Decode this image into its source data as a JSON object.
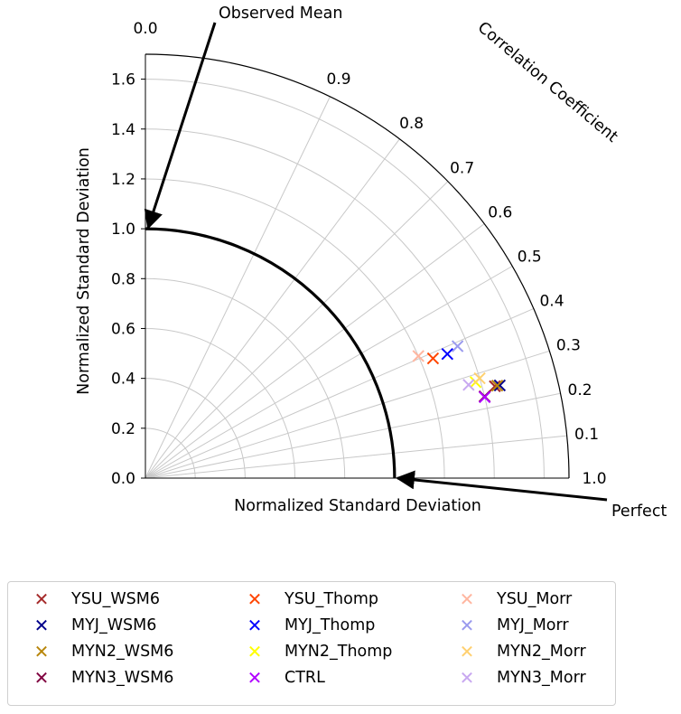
{
  "chart_data": {
    "type": "taylor",
    "title": "",
    "correlation_label": "Correlation Coefficient",
    "std_label_left": "Normalized Standard Deviation",
    "std_label_bottom": "Normalized Standard Deviation",
    "std_max": 1.7,
    "std_ticks": [
      "0.0",
      "0.2",
      "0.4",
      "0.6",
      "0.8",
      "1.0",
      "1.2",
      "1.4",
      "1.6"
    ],
    "std_tick_values": [
      0.0,
      0.2,
      0.4,
      0.6,
      0.8,
      1.0,
      1.2,
      1.4,
      1.6
    ],
    "corr_ticks": [
      "0.0",
      "0.1",
      "0.2",
      "0.3",
      "0.4",
      "0.5",
      "0.6",
      "0.7",
      "0.8",
      "0.9",
      "1.0"
    ],
    "corr_tick_values": [
      0.0,
      0.1,
      0.2,
      0.3,
      0.4,
      0.5,
      0.6,
      0.7,
      0.8,
      0.9,
      1.0
    ],
    "reference_std": 1.0,
    "annotations": {
      "observed_mean": "Observed Mean",
      "perfect": "Perfect"
    },
    "series": [
      {
        "name": "YSU_WSM6",
        "color": "#a52a2a",
        "corr": 0.254,
        "std": 1.45
      },
      {
        "name": "MYJ_WSM6",
        "color": "#00008b",
        "corr": 0.253,
        "std": 1.47
      },
      {
        "name": "MYN2_WSM6",
        "color": "#b8860b",
        "corr": 0.254,
        "std": 1.46
      },
      {
        "name": "MYN3_WSM6",
        "color": "#800040",
        "corr": 0.234,
        "std": 1.4
      },
      {
        "name": "YSU_Thomp",
        "color": "#ff4500",
        "corr": 0.384,
        "std": 1.25
      },
      {
        "name": "MYJ_Thomp",
        "color": "#0000ff",
        "corr": 0.38,
        "std": 1.31
      },
      {
        "name": "MYN2_Thomp",
        "color": "#ffff00",
        "corr": 0.279,
        "std": 1.38
      },
      {
        "name": "CTRL",
        "color": "#b000ff",
        "corr": 0.232,
        "std": 1.4
      },
      {
        "name": "YSU_Morr",
        "color": "#ffb6a0",
        "corr": 0.408,
        "std": 1.2
      },
      {
        "name": "MYJ_Morr",
        "color": "#9a9aee",
        "corr": 0.389,
        "std": 1.36
      },
      {
        "name": "MYN2_Morr",
        "color": "#ffd070",
        "corr": 0.286,
        "std": 1.4
      },
      {
        "name": "MYN3_Morr",
        "color": "#c8a8f0",
        "corr": 0.277,
        "std": 1.35
      }
    ],
    "legend_position": "bottom"
  }
}
